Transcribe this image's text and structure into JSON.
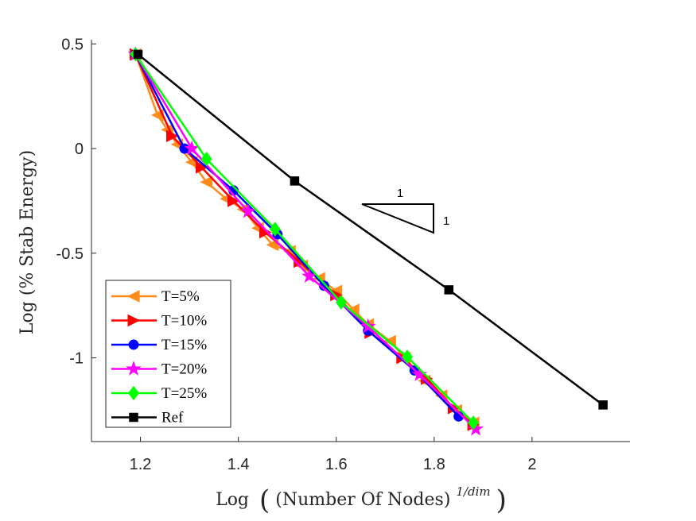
{
  "chart_data": {
    "type": "line",
    "xlabel_prefix": "Log",
    "xlabel_inner": "(Number Of Nodes)",
    "xlabel_sup": "1/dim",
    "ylabel": "Log (% Stab Energy)",
    "xlim": [
      1.1,
      2.2
    ],
    "ylim": [
      -1.4,
      0.52
    ],
    "x_ticks": [
      1.2,
      1.4,
      1.6,
      1.8,
      2.0
    ],
    "x_tick_labels": [
      "1.2",
      "1.4",
      "1.6",
      "1.8",
      "2"
    ],
    "y_ticks": [
      0.5,
      0.0,
      -0.5,
      -1.0
    ],
    "y_tick_labels": [
      "0.5",
      "0",
      "-0.5",
      "-1"
    ],
    "grid": false,
    "legend_position": "bottom-left",
    "slope_triangle": {
      "run_label": "1",
      "rise_label": "1"
    },
    "series": [
      {
        "name": "T=5%",
        "color": "#FF8C1A",
        "marker": "triangle-left",
        "x": [
          1.19,
          1.235,
          1.255,
          1.275,
          1.305,
          1.335,
          1.375,
          1.41,
          1.44,
          1.47,
          1.505,
          1.53,
          1.565,
          1.6,
          1.635,
          1.665,
          1.71,
          1.74,
          1.78,
          1.815,
          1.845,
          1.88
        ],
        "y": [
          0.45,
          0.16,
          0.09,
          0.02,
          -0.065,
          -0.16,
          -0.24,
          -0.29,
          -0.38,
          -0.46,
          -0.49,
          -0.56,
          -0.62,
          -0.68,
          -0.77,
          -0.84,
          -0.92,
          -1.0,
          -1.11,
          -1.18,
          -1.25,
          -1.31
        ]
      },
      {
        "name": "T=10%",
        "color": "#FF0000",
        "marker": "triangle-right",
        "x": [
          1.19,
          1.265,
          1.325,
          1.39,
          1.455,
          1.525,
          1.6,
          1.67,
          1.735,
          1.785,
          1.84,
          1.88
        ],
        "y": [
          0.45,
          0.06,
          -0.09,
          -0.25,
          -0.4,
          -0.54,
          -0.7,
          -0.88,
          -1.0,
          -1.1,
          -1.24,
          -1.32
        ]
      },
      {
        "name": "T=15%",
        "color": "#0000FF",
        "marker": "circle",
        "x": [
          1.19,
          1.29,
          1.39,
          1.48,
          1.575,
          1.665,
          1.76,
          1.85
        ],
        "y": [
          0.45,
          -0.0,
          -0.2,
          -0.41,
          -0.655,
          -0.87,
          -1.06,
          -1.28
        ]
      },
      {
        "name": "T=20%",
        "color": "#FF00FF",
        "marker": "star",
        "x": [
          1.19,
          1.305,
          1.42,
          1.545,
          1.665,
          1.77,
          1.885
        ],
        "y": [
          0.45,
          -0.0,
          -0.3,
          -0.61,
          -0.85,
          -1.08,
          -1.34
        ]
      },
      {
        "name": "T=25%",
        "color": "#00FF00",
        "marker": "diamond",
        "x": [
          1.19,
          1.335,
          1.475,
          1.61,
          1.745,
          1.88
        ],
        "y": [
          0.45,
          -0.05,
          -0.385,
          -0.735,
          -0.995,
          -1.31
        ]
      },
      {
        "name": "Ref",
        "color": "#000000",
        "marker": "square",
        "x": [
          1.195,
          1.515,
          1.83,
          2.145
        ],
        "y": [
          0.45,
          -0.155,
          -0.675,
          -1.225
        ]
      }
    ]
  }
}
